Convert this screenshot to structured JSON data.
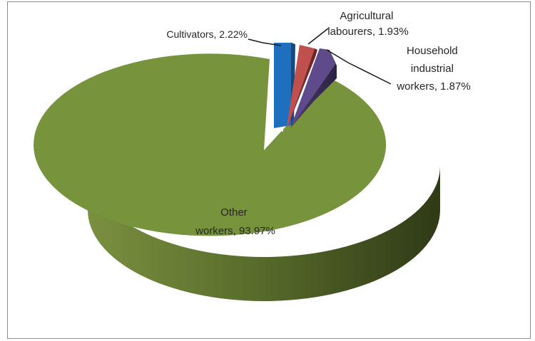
{
  "chart_data": {
    "type": "pie",
    "style": "3d-exploded",
    "title": "",
    "slices": [
      {
        "name": "Cultivators",
        "value": 2.22,
        "label": "Cultivators, 2.22%",
        "color": "#1f6fbf"
      },
      {
        "name": "Agricultural labourers",
        "value": 1.93,
        "label_lines": [
          "Agricultural",
          "labourers, 1.93%"
        ],
        "color": "#c0504d"
      },
      {
        "name": "Household industrial workers",
        "value": 1.87,
        "label_lines": [
          "Household",
          "industrial",
          "workers, 1.87%"
        ],
        "color": "#5f4b8b"
      },
      {
        "name": "Other workers",
        "value": 93.97,
        "label_lines": [
          "Other",
          "workers, 93.97%"
        ],
        "color": "#77933c"
      }
    ]
  }
}
